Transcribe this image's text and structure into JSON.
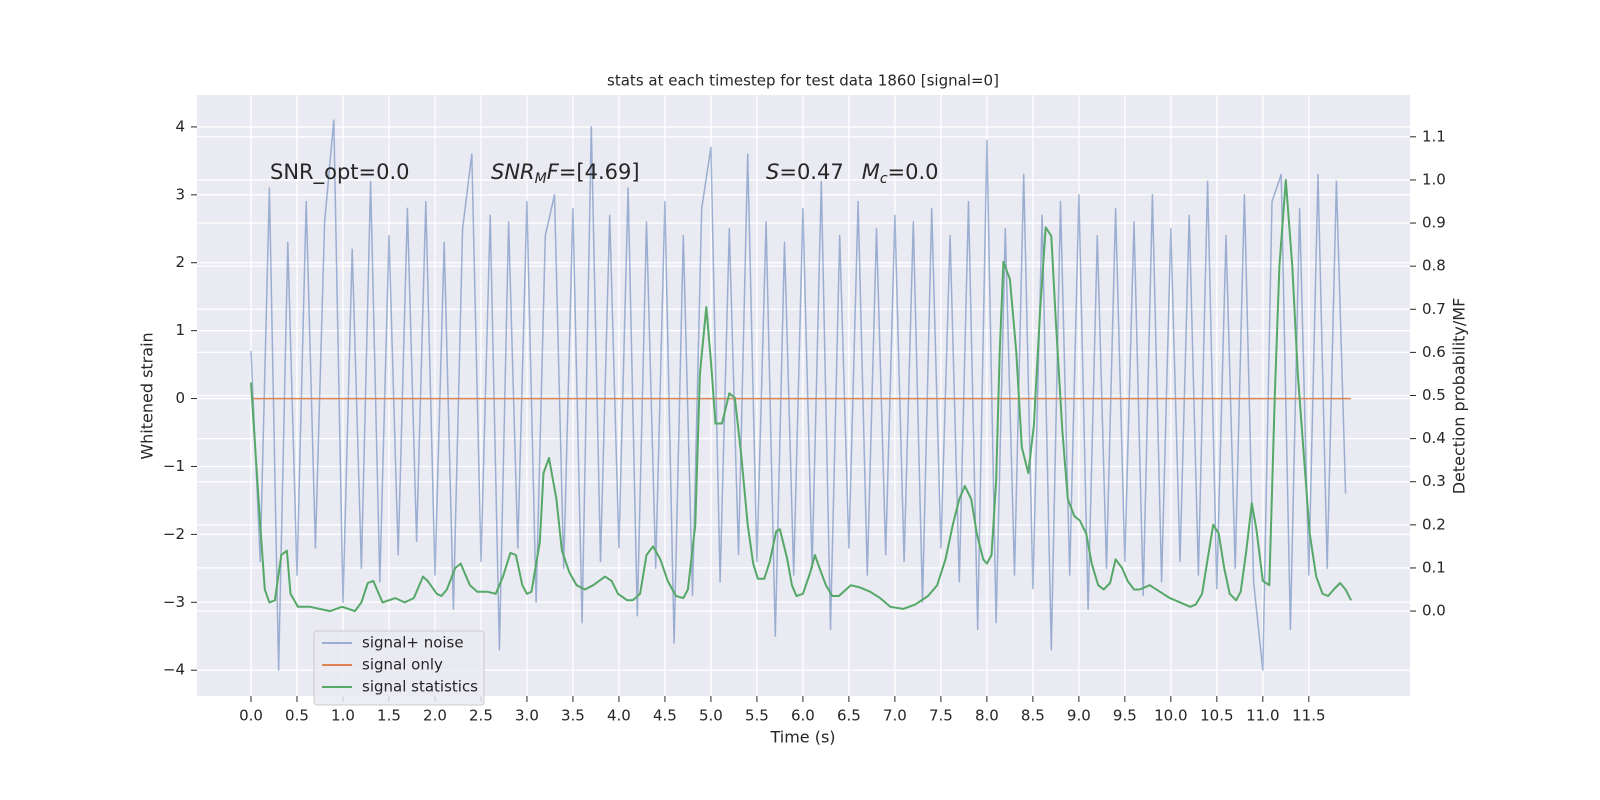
{
  "chart_data": {
    "type": "line",
    "title": "stats at each timestep for test data 1860 [signal=0]",
    "xlabel": "Time (s)",
    "ylabel": "Whitened strain",
    "y2label": "Detection probability/MF",
    "annotations": [
      [
        "SNR_opt=0.0"
      ],
      [
        "SNR",
        "M",
        "F",
        "=[4.69]"
      ],
      [
        "S",
        "=0.47",
        "M",
        "c",
        "=0.0"
      ]
    ],
    "xlim": [
      -0.587,
      12.6
    ],
    "xticks": [
      {
        "value": 0,
        "label": "0.0"
      },
      0.5,
      {
        "value": 1,
        "label": "1.0"
      },
      1.5,
      {
        "value": 2,
        "label": "2.0"
      },
      2.5,
      {
        "value": 3,
        "label": "3.0"
      },
      3.5,
      {
        "value": 4,
        "label": "4.0"
      },
      4.5,
      {
        "value": 5,
        "label": "5.0"
      },
      5.5,
      {
        "value": 6,
        "label": "6.0"
      },
      6.5,
      {
        "value": 7,
        "label": "7.0"
      },
      7.5,
      {
        "value": 8,
        "label": "8.0"
      },
      8.5,
      {
        "value": 9,
        "label": "9.0"
      },
      9.5,
      {
        "value": 10,
        "label": "10.0"
      },
      10.5,
      {
        "value": 11,
        "label": "11.0"
      },
      11.5
    ],
    "ylim": [
      -4.38,
      4.47
    ],
    "yticks": [
      {
        "value": -4,
        "label": "−4"
      },
      {
        "value": -3,
        "label": "−3"
      },
      {
        "value": -2,
        "label": "−2"
      },
      {
        "value": -1,
        "label": "−1"
      },
      0,
      1,
      2,
      3,
      4
    ],
    "y2lim": [
      -0.197,
      1.197
    ],
    "y2ticks": [
      {
        "value": 0,
        "label": "0.0"
      },
      0.1,
      0.2,
      0.3,
      0.4,
      0.5,
      0.6,
      0.7,
      0.8,
      0.9,
      {
        "value": 1,
        "label": "1.0"
      },
      1.1
    ],
    "grid": true,
    "legend": "lower left",
    "series": [
      {
        "name": "signal+ noise",
        "color": "#4c72b0",
        "opacity": 0.5,
        "x": [
          0.0,
          0.1,
          0.2,
          0.3,
          0.4,
          0.5,
          0.6,
          0.7,
          0.8,
          0.9,
          1.0,
          1.1,
          1.2,
          1.3,
          1.4,
          1.5,
          1.6,
          1.7,
          1.8,
          1.9,
          2.0,
          2.1,
          2.2,
          2.3,
          2.4,
          2.5,
          2.6,
          2.7,
          2.8,
          2.9,
          3.0,
          3.1,
          3.2,
          3.3,
          3.4,
          3.5,
          3.6,
          3.7,
          3.8,
          3.9,
          4.0,
          4.1,
          4.2,
          4.3,
          4.4,
          4.5,
          4.6,
          4.7,
          4.8,
          4.9,
          5.0,
          5.1,
          5.2,
          5.3,
          5.4,
          5.5,
          5.6,
          5.7,
          5.8,
          5.9,
          6.0,
          6.1,
          6.2,
          6.3,
          6.4,
          6.5,
          6.6,
          6.7,
          6.8,
          6.9,
          7.0,
          7.1,
          7.2,
          7.3,
          7.4,
          7.5,
          7.6,
          7.7,
          7.8,
          7.9,
          8.0,
          8.1,
          8.2,
          8.3,
          8.4,
          8.5,
          8.6,
          8.7,
          8.8,
          8.9,
          9.0,
          9.1,
          9.2,
          9.3,
          9.4,
          9.5,
          9.6,
          9.7,
          9.8,
          9.9,
          10.0,
          10.1,
          10.2,
          10.3,
          10.4,
          10.5,
          10.6,
          10.7,
          10.8,
          10.9,
          11.0,
          11.1,
          11.2,
          11.3,
          11.4,
          11.5,
          11.6,
          11.7,
          11.8,
          11.9
        ],
        "values": [
          0.7,
          -2.4,
          3.1,
          -4.0,
          2.3,
          -2.6,
          2.9,
          -2.2,
          2.6,
          4.1,
          -3.0,
          2.2,
          -2.5,
          3.2,
          -2.7,
          2.4,
          -2.3,
          2.8,
          -2.1,
          2.9,
          -2.6,
          2.3,
          -3.1,
          2.5,
          3.6,
          -2.4,
          2.7,
          -3.7,
          2.6,
          -2.2,
          2.9,
          -3.0,
          2.4,
          3.0,
          -2.5,
          2.8,
          -3.3,
          4.0,
          -2.4,
          2.7,
          -2.2,
          3.1,
          -3.2,
          2.6,
          -2.5,
          2.9,
          -3.6,
          2.4,
          -2.9,
          2.8,
          3.7,
          -2.7,
          2.5,
          -2.3,
          3.6,
          -2.4,
          2.6,
          -3.5,
          2.3,
          -2.6,
          2.8,
          -2.5,
          3.2,
          -3.4,
          2.4,
          -2.2,
          2.9,
          -2.6,
          2.5,
          -2.3,
          2.7,
          -2.4,
          2.6,
          -3.0,
          2.8,
          -2.2,
          2.4,
          -2.7,
          2.9,
          -3.4,
          3.8,
          -3.3,
          2.5,
          -2.6,
          3.3,
          -2.8,
          2.7,
          -3.7,
          2.9,
          -2.6,
          3.0,
          -3.1,
          2.4,
          -2.5,
          2.8,
          -2.4,
          2.6,
          -2.9,
          3.0,
          -2.7,
          2.5,
          -2.4,
          2.7,
          -2.6,
          3.2,
          -2.8,
          2.4,
          -2.5,
          3.0,
          -2.7,
          -4.0,
          2.9,
          3.3,
          -3.4,
          2.8,
          -2.6,
          3.3,
          -2.5,
          3.2,
          -1.4
        ]
      },
      {
        "name": "signal only",
        "color": "#dd8452",
        "x": [
          0.0,
          11.96
        ],
        "values": [
          0,
          0
        ]
      },
      {
        "name": "signal statistics",
        "color": "#55a868",
        "axis": "y2",
        "x": [
          0.0,
          0.1,
          0.15,
          0.2,
          0.26,
          0.33,
          0.39,
          0.43,
          0.51,
          0.64,
          0.86,
          0.99,
          1.13,
          1.2,
          1.27,
          1.33,
          1.43,
          1.57,
          1.67,
          1.77,
          1.87,
          1.92,
          2.02,
          2.07,
          2.13,
          2.22,
          2.28,
          2.38,
          2.46,
          2.57,
          2.66,
          2.74,
          2.82,
          2.88,
          2.95,
          3.0,
          3.05,
          3.14,
          3.18,
          3.24,
          3.32,
          3.38,
          3.46,
          3.54,
          3.63,
          3.72,
          3.85,
          3.92,
          3.99,
          4.09,
          4.15,
          4.23,
          4.3,
          4.37,
          4.45,
          4.53,
          4.62,
          4.7,
          4.75,
          4.83,
          4.88,
          4.95,
          5.0,
          5.05,
          5.12,
          5.2,
          5.26,
          5.33,
          5.4,
          5.46,
          5.51,
          5.58,
          5.64,
          5.71,
          5.75,
          5.83,
          5.88,
          5.93,
          6.0,
          6.08,
          6.13,
          6.18,
          6.25,
          6.32,
          6.39,
          6.47,
          6.52,
          6.62,
          6.73,
          6.84,
          6.95,
          7.09,
          7.22,
          7.36,
          7.46,
          7.55,
          7.63,
          7.7,
          7.76,
          7.83,
          7.89,
          7.96,
          8.0,
          8.05,
          8.1,
          8.14,
          8.18,
          8.25,
          8.32,
          8.38,
          8.45,
          8.51,
          8.58,
          8.64,
          8.7,
          8.75,
          8.82,
          8.88,
          8.95,
          9.01,
          9.08,
          9.14,
          9.21,
          9.27,
          9.34,
          9.4,
          9.47,
          9.53,
          9.6,
          9.66,
          9.77,
          9.88,
          9.99,
          10.1,
          10.21,
          10.27,
          10.34,
          10.4,
          10.46,
          10.52,
          10.58,
          10.64,
          10.71,
          10.76,
          10.82,
          10.88,
          10.93,
          11.0,
          11.07,
          11.13,
          11.18,
          11.25,
          11.32,
          11.38,
          11.45,
          11.51,
          11.58,
          11.65,
          11.71,
          11.77,
          11.84,
          11.9,
          11.96
        ],
        "values": [
          0.53,
          0.2,
          0.05,
          0.02,
          0.025,
          0.13,
          0.14,
          0.04,
          0.01,
          0.01,
          0.0,
          0.01,
          0.0,
          0.02,
          0.065,
          0.07,
          0.02,
          0.03,
          0.02,
          0.03,
          0.08,
          0.07,
          0.04,
          0.035,
          0.05,
          0.1,
          0.11,
          0.06,
          0.045,
          0.045,
          0.04,
          0.08,
          0.135,
          0.13,
          0.06,
          0.04,
          0.045,
          0.16,
          0.32,
          0.355,
          0.26,
          0.14,
          0.09,
          0.06,
          0.05,
          0.06,
          0.08,
          0.07,
          0.04,
          0.025,
          0.025,
          0.04,
          0.13,
          0.15,
          0.12,
          0.07,
          0.035,
          0.03,
          0.05,
          0.2,
          0.55,
          0.705,
          0.58,
          0.435,
          0.435,
          0.505,
          0.495,
          0.36,
          0.2,
          0.11,
          0.075,
          0.075,
          0.115,
          0.185,
          0.19,
          0.12,
          0.06,
          0.035,
          0.04,
          0.09,
          0.13,
          0.1,
          0.06,
          0.035,
          0.035,
          0.05,
          0.06,
          0.055,
          0.045,
          0.03,
          0.01,
          0.005,
          0.015,
          0.035,
          0.06,
          0.12,
          0.2,
          0.26,
          0.29,
          0.26,
          0.18,
          0.12,
          0.11,
          0.13,
          0.3,
          0.6,
          0.81,
          0.77,
          0.6,
          0.38,
          0.32,
          0.43,
          0.7,
          0.89,
          0.87,
          0.67,
          0.42,
          0.26,
          0.22,
          0.21,
          0.18,
          0.11,
          0.06,
          0.05,
          0.065,
          0.12,
          0.1,
          0.07,
          0.05,
          0.05,
          0.06,
          0.045,
          0.03,
          0.02,
          0.01,
          0.015,
          0.04,
          0.12,
          0.2,
          0.18,
          0.1,
          0.04,
          0.025,
          0.045,
          0.14,
          0.25,
          0.19,
          0.07,
          0.06,
          0.5,
          0.8,
          1.0,
          0.8,
          0.55,
          0.35,
          0.18,
          0.08,
          0.04,
          0.035,
          0.05,
          0.065,
          0.05,
          0.025
        ]
      }
    ]
  }
}
